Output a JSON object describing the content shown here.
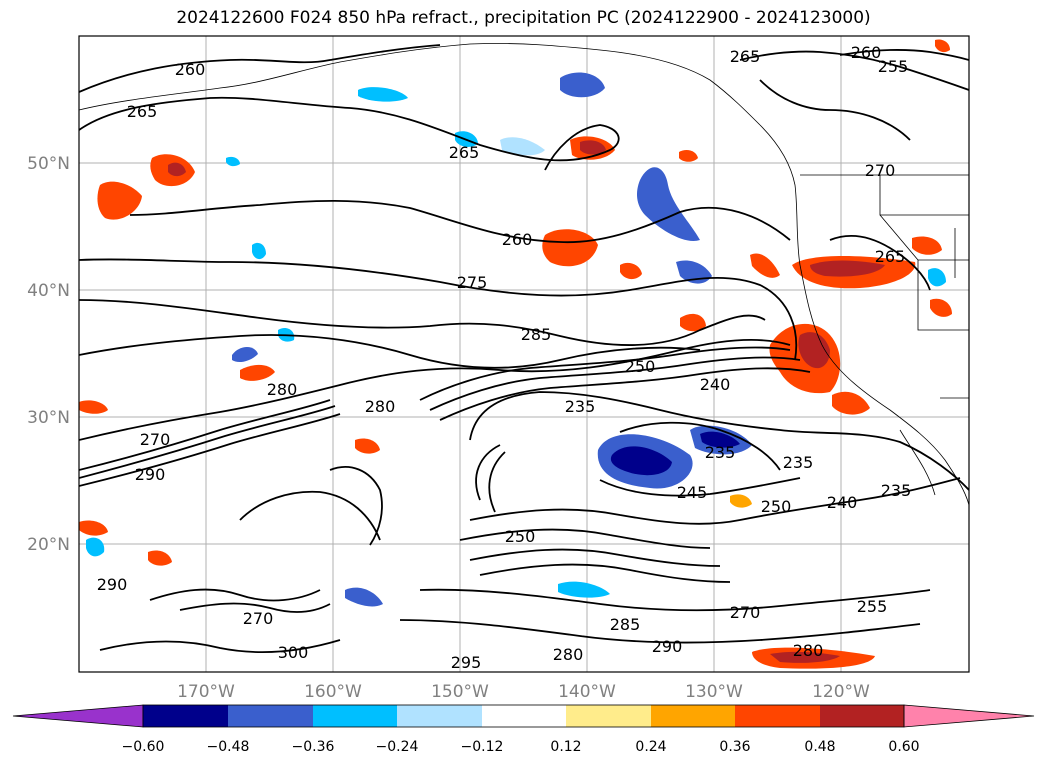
{
  "title": "2024122600 F024 850 hPa refract., precipitation PC (2024122900 - 2024123000)",
  "lat_labels": [
    "50°N",
    "40°N",
    "30°N",
    "20°N"
  ],
  "lon_labels": [
    "170°W",
    "160°W",
    "150°W",
    "140°W",
    "130°W",
    "120°W"
  ],
  "colorbar": {
    "tick_labels": [
      "−0.60",
      "−0.48",
      "−0.36",
      "−0.24",
      "−0.12",
      "0.12",
      "0.24",
      "0.36",
      "0.48",
      "0.60"
    ],
    "colors": [
      "#9932CC",
      "#00008B",
      "#3A5FCD",
      "#00BFFF",
      "#B0E2FF",
      "#FFFFFF",
      "#FFEC8B",
      "#FFA500",
      "#FF4500",
      "#B22222",
      "#FF82AB"
    ]
  },
  "contour_labels": [
    "260",
    "265",
    "265",
    "260",
    "275",
    "285",
    "280",
    "280",
    "270",
    "290",
    "250",
    "240",
    "235",
    "235",
    "235",
    "245",
    "250",
    "240",
    "235",
    "255",
    "270",
    "280",
    "290",
    "285",
    "300",
    "295",
    "280",
    "255",
    "260",
    "265",
    "270",
    "265",
    "290",
    "250",
    "270"
  ],
  "colors": {
    "contour": "#000000",
    "grid": "#b0b0b0",
    "neg_strong": "#00008B",
    "neg_mid": "#3A5FCD",
    "neg_light": "#00BFFF",
    "neg_pale": "#B0E2FF",
    "pos_pale": "#FFEC8B",
    "pos_light": "#FFA500",
    "pos_mid": "#FF4500",
    "pos_strong": "#B22222",
    "pos_max": "#FF82AB"
  }
}
